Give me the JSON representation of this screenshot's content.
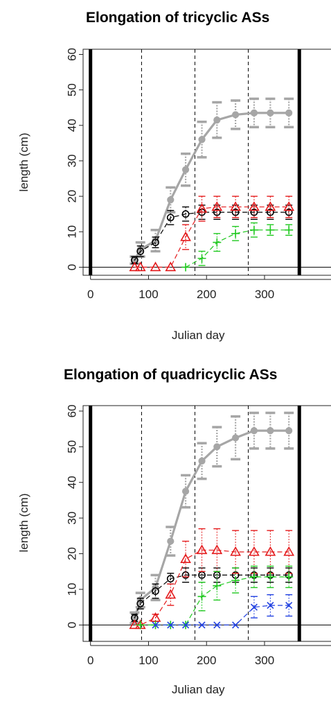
{
  "chart_data": [
    {
      "type": "line",
      "title": "Elongation of tricyclic ASs",
      "xlabel": "Julian day",
      "ylabel": "length (cm)",
      "xlim": [
        -10,
        360
      ],
      "ylim": [
        -2,
        62
      ],
      "xticks": [
        0,
        100,
        200,
        300
      ],
      "yticks": [
        0,
        10,
        20,
        30,
        40,
        50,
        60
      ],
      "vlines_dashed": [
        88,
        180,
        272
      ],
      "vlines_bold": [
        0,
        360
      ],
      "series": [
        {
          "color": "#a6a6a6",
          "marker": "filled-circle",
          "linestyle": "solid",
          "x": [
            76,
            86,
            112,
            138,
            164,
            192,
            218,
            250,
            282,
            310,
            342
          ],
          "y": [
            2,
            5,
            7.5,
            19,
            27.5,
            36,
            41.5,
            43,
            43.5,
            43.5,
            43.5
          ],
          "err": [
            1,
            2,
            3,
            3.5,
            4.5,
            5,
            5,
            4,
            4,
            4,
            4
          ]
        },
        {
          "color": "#000000",
          "marker": "circle",
          "linestyle": "dashed",
          "x": [
            76,
            86,
            112,
            138,
            164,
            192,
            218,
            250,
            282,
            310,
            342
          ],
          "y": [
            2,
            4.5,
            7,
            14,
            15,
            15.5,
            15.5,
            15.5,
            15.5,
            15.5,
            15.5
          ],
          "err": [
            1,
            1.5,
            1.5,
            2,
            2,
            2,
            2,
            2,
            2,
            2,
            2
          ]
        },
        {
          "color": "#e41a1c",
          "marker": "triangle",
          "linestyle": "dashed",
          "x": [
            76,
            86,
            112,
            138,
            164,
            192,
            218,
            250,
            282,
            310,
            342
          ],
          "y": [
            0,
            0,
            0,
            0,
            8.5,
            16.5,
            17,
            17,
            17,
            17,
            17
          ],
          "err": [
            0,
            0,
            0,
            0,
            3.5,
            3.5,
            3,
            3,
            3,
            3,
            3
          ]
        },
        {
          "color": "#1ec81e",
          "marker": "plus",
          "linestyle": "dashed",
          "x": [
            164,
            192,
            218,
            250,
            282,
            310,
            342
          ],
          "y": [
            0,
            2.5,
            7,
            9.5,
            10.5,
            10.5,
            10.5
          ],
          "err": [
            0,
            2,
            2.5,
            2,
            2,
            1.5,
            1.5
          ]
        }
      ]
    },
    {
      "type": "line",
      "title": "Elongation of quadricyclic ASs",
      "xlabel": "Julian day",
      "ylabel": "length (cm)",
      "xlim": [
        -10,
        360
      ],
      "ylim": [
        -2,
        62
      ],
      "xticks": [
        0,
        100,
        200,
        300
      ],
      "yticks": [
        0,
        10,
        20,
        30,
        40,
        50,
        60
      ],
      "vlines_dashed": [
        88,
        180,
        272
      ],
      "vlines_bold": [
        0,
        360
      ],
      "series": [
        {
          "color": "#a6a6a6",
          "marker": "filled-circle",
          "linestyle": "solid",
          "x": [
            76,
            86,
            112,
            138,
            164,
            192,
            218,
            250,
            282,
            310,
            342
          ],
          "y": [
            2,
            7,
            10.5,
            23.5,
            37.5,
            46,
            50,
            52.5,
            54.5,
            54.5,
            54.5
          ],
          "err": [
            1.5,
            2,
            3.5,
            4,
            4.5,
            5,
            5.5,
            6,
            5,
            5,
            5
          ]
        },
        {
          "color": "#000000",
          "marker": "circle",
          "linestyle": "dashed",
          "x": [
            76,
            86,
            112,
            138,
            164,
            192,
            218,
            250,
            282,
            310,
            342
          ],
          "y": [
            2,
            6,
            9.5,
            13,
            14,
            14,
            14,
            14,
            14,
            14,
            14
          ],
          "err": [
            1,
            1.5,
            2,
            1.5,
            2,
            2,
            2,
            2,
            2,
            2,
            2
          ]
        },
        {
          "color": "#e41a1c",
          "marker": "triangle",
          "linestyle": "dashed",
          "x": [
            76,
            86,
            112,
            138,
            164,
            192,
            218,
            250,
            282,
            310,
            342
          ],
          "y": [
            0,
            0,
            2,
            8.5,
            18.5,
            21,
            21,
            20.5,
            20.5,
            20.5,
            20.5
          ],
          "err": [
            0,
            0,
            1,
            3,
            5,
            6,
            6,
            6,
            6,
            6,
            6
          ]
        },
        {
          "color": "#1ec81e",
          "marker": "plus",
          "linestyle": "dashed",
          "x": [
            86,
            112,
            138,
            164,
            192,
            218,
            250,
            282,
            310,
            342
          ],
          "y": [
            0,
            0,
            0,
            0,
            8,
            11,
            12.5,
            13.5,
            13.5,
            13.5
          ],
          "err": [
            0,
            0,
            0,
            0,
            4,
            4,
            3.5,
            3,
            3,
            3
          ]
        },
        {
          "color": "#1f3fe0",
          "marker": "cross",
          "linestyle": "dashed",
          "x": [
            112,
            138,
            164,
            192,
            218,
            250,
            282,
            310,
            342
          ],
          "y": [
            0,
            0,
            0,
            0,
            0,
            0,
            5,
            5.5,
            5.5
          ],
          "err": [
            0,
            0,
            0,
            0,
            0,
            0,
            3,
            3,
            3
          ]
        }
      ]
    }
  ]
}
